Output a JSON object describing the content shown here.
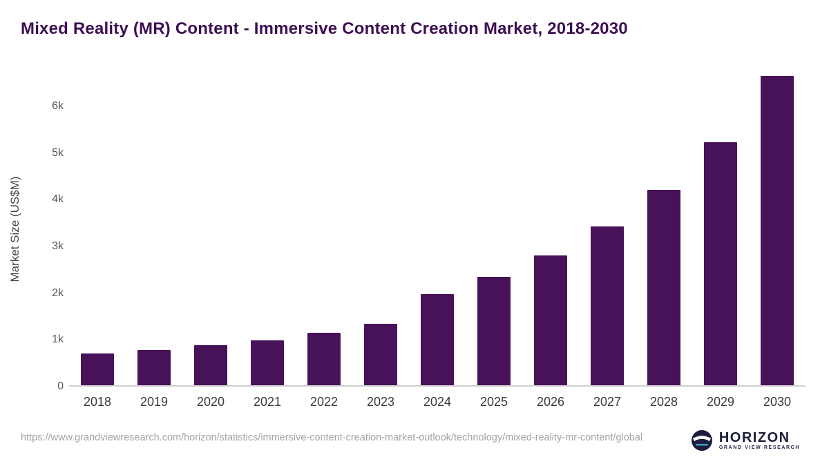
{
  "title": "Mixed Reality (MR) Content - Immersive Content Creation Market, 2018-2030",
  "chart_data": {
    "type": "bar",
    "title": "Mixed Reality (MR) Content - Immersive Content Creation Market, 2018-2030",
    "categories": [
      "2018",
      "2019",
      "2020",
      "2021",
      "2022",
      "2023",
      "2024",
      "2025",
      "2026",
      "2027",
      "2028",
      "2029",
      "2030"
    ],
    "values": [
      680,
      760,
      860,
      970,
      1130,
      1320,
      1960,
      2330,
      2790,
      3410,
      4200,
      5230,
      6650
    ],
    "xlabel": "",
    "ylabel": "Market Size (US$M)",
    "ylim": [
      0,
      6800
    ],
    "yticks": [
      0,
      1000,
      2000,
      3000,
      4000,
      5000,
      6000
    ],
    "ytick_labels": [
      "0",
      "1k",
      "2k",
      "3k",
      "4k",
      "5k",
      "6k"
    ],
    "grid": false,
    "legend": "none",
    "bar_color": "#481259"
  },
  "colors": {
    "title": "#3d0f54",
    "bar": "#481259",
    "axis_line": "#cfcfcf",
    "logo_navy": "#1d1d3d"
  },
  "footer": {
    "source_url": "https://www.grandviewresearch.com/horizon/statistics/immersive-content-creation-market-outlook/technology/mixed-reality-mr-content/global",
    "logo_text": "HORIZON",
    "logo_subtext": "GRAND VIEW RESEARCH"
  }
}
